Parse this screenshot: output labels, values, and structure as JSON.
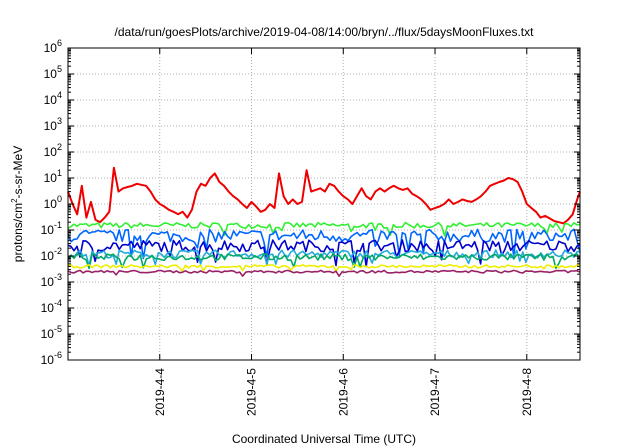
{
  "chart_data": {
    "type": "line",
    "title": "/data/run/goesPlots/archive/2019-04-08/14:00/bryn/../flux/5daysMoonFluxes.txt",
    "xlabel": "Coordinated Universal Time (UTC)",
    "ylabel": {
      "pre": "protons/cm",
      "sup": "2",
      "post": "-s-sr-MeV"
    },
    "yscale": "log",
    "ylim": [
      1e-06,
      1000000.0
    ],
    "y_ticks": [
      {
        "base": "10",
        "exp": "-6"
      },
      {
        "base": "10",
        "exp": "-5"
      },
      {
        "base": "10",
        "exp": "-4"
      },
      {
        "base": "10",
        "exp": "-3"
      },
      {
        "base": "10",
        "exp": "-2"
      },
      {
        "base": "10",
        "exp": "-1"
      },
      {
        "base": "10",
        "exp": "0"
      },
      {
        "base": "10",
        "exp": "1"
      },
      {
        "base": "10",
        "exp": "2"
      },
      {
        "base": "10",
        "exp": "3"
      },
      {
        "base": "10",
        "exp": "4"
      },
      {
        "base": "10",
        "exp": "5"
      },
      {
        "base": "10",
        "exp": "6"
      }
    ],
    "xlim": [
      "2019-04-03 00:00",
      "2019-04-08 14:00"
    ],
    "x_tick_labels": [
      "2019-4-4",
      "2019-4-5",
      "2019-4-6",
      "2019-4-7",
      "2019-4-8"
    ],
    "grid": true,
    "series": [
      {
        "color": "#ee0000",
        "x": [
          0,
          0.05,
          0.1,
          0.15,
          0.2,
          0.25,
          0.3,
          0.35,
          0.4,
          0.45,
          0.5,
          0.55,
          0.6,
          0.65,
          0.7,
          0.75,
          0.8,
          0.85,
          0.9,
          0.95,
          1,
          1.05,
          1.1,
          1.15,
          1.2,
          1.25,
          1.3,
          1.35,
          1.4,
          1.45,
          1.5,
          1.55,
          1.6,
          1.65,
          1.7,
          1.75,
          1.8,
          1.85,
          1.9,
          1.95,
          2,
          2.05,
          2.1,
          2.15,
          2.2,
          2.25,
          2.3,
          2.35,
          2.4,
          2.45,
          2.5,
          2.55,
          2.6,
          2.65,
          2.7,
          2.75,
          2.8,
          2.85,
          2.9,
          2.95,
          3,
          3.05,
          3.1,
          3.15,
          3.2,
          3.25,
          3.3,
          3.35,
          3.4,
          3.45,
          3.5,
          3.55,
          3.6,
          3.65,
          3.7,
          3.75,
          3.8,
          3.85,
          3.9,
          3.95,
          4,
          4.05,
          4.1,
          4.15,
          4.2,
          4.25,
          4.3,
          4.35,
          4.4,
          4.45,
          4.5,
          4.55,
          4.6,
          4.65,
          4.7,
          4.75,
          4.8,
          4.85,
          4.9,
          4.95,
          5,
          5.05,
          5.1,
          5.15,
          5.2,
          5.25,
          5.3,
          5.35,
          5.4,
          5.45,
          5.5,
          5.55,
          5.58
        ],
        "values": [
          3.0,
          1.0,
          0.4,
          5.0,
          0.3,
          1.2,
          0.25,
          0.2,
          0.3,
          0.5,
          25,
          3.0,
          4.0,
          4.5,
          5.0,
          6.0,
          5.5,
          5.0,
          3.0,
          1.5,
          1.0,
          0.8,
          0.6,
          0.5,
          0.4,
          0.5,
          0.3,
          0.6,
          3.0,
          6.0,
          5.0,
          10,
          15,
          7.0,
          5.0,
          3.0,
          2.0,
          1.5,
          1.0,
          0.7,
          1.2,
          0.8,
          0.5,
          0.6,
          1.0,
          0.7,
          15,
          2.0,
          1.0,
          1.5,
          1.0,
          1.2,
          20,
          3.0,
          3.5,
          4.0,
          3.0,
          6.0,
          5.0,
          3.0,
          2.0,
          1.5,
          1.0,
          2.0,
          4.0,
          2.0,
          1.5,
          3.0,
          4.0,
          3.0,
          4.0,
          5.0,
          4.0,
          3.5,
          4.0,
          2.5,
          2.0,
          1.5,
          1.0,
          0.6,
          0.7,
          0.8,
          1.0,
          1.5,
          1.0,
          1.2,
          1.5,
          1.3,
          1.2,
          1.5,
          2.0,
          3.0,
          5.0,
          6.0,
          7.0,
          8.0,
          10,
          9.0,
          7.0,
          3.0,
          1.0,
          0.7,
          0.5,
          0.3,
          0.35,
          0.28,
          0.22,
          0.2,
          0.18,
          0.25,
          0.4,
          1.5,
          3.0
        ]
      },
      {
        "color": "#33ee33",
        "x": [
          0,
          5.58
        ],
        "values": [
          0.15,
          0.15
        ]
      },
      {
        "color": "#0066ff",
        "x": [
          0,
          5.58
        ],
        "values": [
          0.06,
          0.06
        ]
      },
      {
        "color": "#0000cc",
        "x": [
          0,
          5.58
        ],
        "values": [
          0.025,
          0.025
        ]
      },
      {
        "color": "#22aadd",
        "x": [
          0,
          5.58
        ],
        "values": [
          0.012,
          0.012
        ]
      },
      {
        "color": "#00aa66",
        "x": [
          0,
          5.58
        ],
        "values": [
          0.009,
          0.009
        ]
      },
      {
        "color": "#eeee00",
        "x": [
          0,
          5.58
        ],
        "values": [
          0.004,
          0.004
        ]
      },
      {
        "color": "#992266",
        "x": [
          0,
          5.58
        ],
        "values": [
          0.0025,
          0.0025
        ]
      }
    ]
  }
}
